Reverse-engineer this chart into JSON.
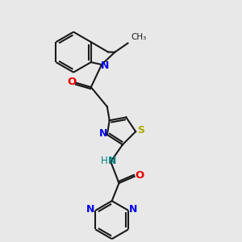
{
  "background_color": "#e8e8e8",
  "bond_color": "#1a1a1a",
  "n_color": "#0000ee",
  "o_color": "#ee0000",
  "s_color": "#aaaa00",
  "nh_color": "#008080",
  "line_width": 1.5,
  "figsize": [
    3.0,
    3.0
  ],
  "dpi": 100,
  "xlim": [
    0,
    10
  ],
  "ylim": [
    0,
    10
  ]
}
